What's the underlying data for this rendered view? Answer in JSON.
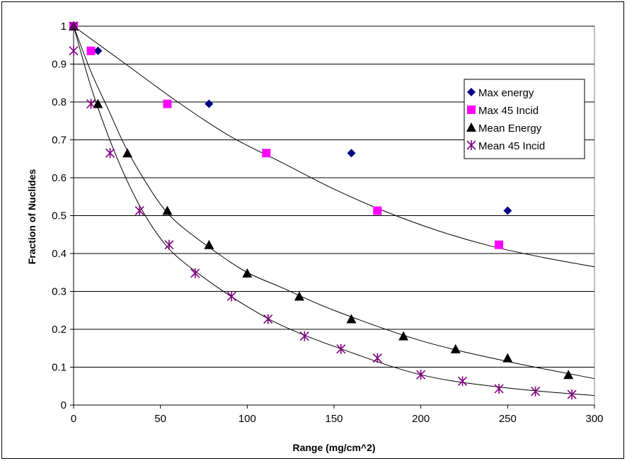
{
  "chart_data": {
    "type": "scatter",
    "title": "",
    "xlabel": "Range (mg/cm^2)",
    "ylabel": "Fraction of Nuclides",
    "xlim": [
      0,
      300
    ],
    "ylim": [
      0,
      1
    ],
    "xticks": [
      0,
      50,
      100,
      150,
      200,
      250,
      300
    ],
    "yticks": [
      0,
      0.1,
      0.2,
      0.3,
      0.4,
      0.5,
      0.6,
      0.7,
      0.8,
      0.9,
      1
    ],
    "grid": "horizontal",
    "legend_position": "top-right",
    "series": [
      {
        "name": "Max energy",
        "marker": "diamond",
        "color": "#000080",
        "x": [
          0,
          14,
          78,
          160,
          250
        ],
        "y": [
          1,
          0.935,
          0.795,
          0.665,
          0.513
        ]
      },
      {
        "name": "Max 45 Incid",
        "marker": "square",
        "color": "#ff00ff",
        "x": [
          0,
          10,
          54,
          111,
          175,
          245
        ],
        "y": [
          1,
          0.935,
          0.795,
          0.665,
          0.513,
          0.423
        ]
      },
      {
        "name": "Mean Energy",
        "marker": "triangle",
        "color": "#000000",
        "x": [
          0,
          14,
          31,
          54,
          78,
          100,
          130,
          160,
          190,
          220,
          250,
          285
        ],
        "y": [
          1,
          0.795,
          0.665,
          0.513,
          0.423,
          0.348,
          0.287,
          0.227,
          0.182,
          0.148,
          0.124,
          0.08
        ]
      },
      {
        "name": "Mean 45 Incid",
        "marker": "star",
        "color": "#800080",
        "x": [
          0,
          0,
          10,
          21,
          38,
          55,
          70,
          91,
          112,
          133,
          154,
          175,
          200,
          224,
          245,
          266,
          287
        ],
        "y": [
          1,
          0.935,
          0.795,
          0.665,
          0.513,
          0.423,
          0.348,
          0.287,
          0.227,
          0.182,
          0.148,
          0.124,
          0.08,
          0.063,
          0.043,
          0.036,
          0.028
        ]
      }
    ],
    "trendlines": [
      {
        "x": [
          0,
          30,
          60,
          90,
          120,
          150,
          180,
          210,
          240,
          270,
          300
        ],
        "y": [
          1,
          0.9,
          0.8,
          0.71,
          0.64,
          0.57,
          0.51,
          0.46,
          0.42,
          0.39,
          0.365
        ]
      },
      {
        "x": [
          0,
          10,
          20,
          30,
          40,
          50,
          60,
          80,
          100,
          120,
          150,
          200,
          250,
          300
        ],
        "y": [
          1,
          0.88,
          0.78,
          0.68,
          0.6,
          0.53,
          0.48,
          0.41,
          0.35,
          0.31,
          0.25,
          0.17,
          0.115,
          0.07
        ]
      },
      {
        "x": [
          0,
          10,
          20,
          30,
          40,
          50,
          60,
          80,
          100,
          120,
          150,
          200,
          250,
          300
        ],
        "y": [
          1,
          0.84,
          0.71,
          0.6,
          0.51,
          0.44,
          0.39,
          0.32,
          0.26,
          0.21,
          0.155,
          0.08,
          0.045,
          0.025
        ]
      }
    ]
  }
}
